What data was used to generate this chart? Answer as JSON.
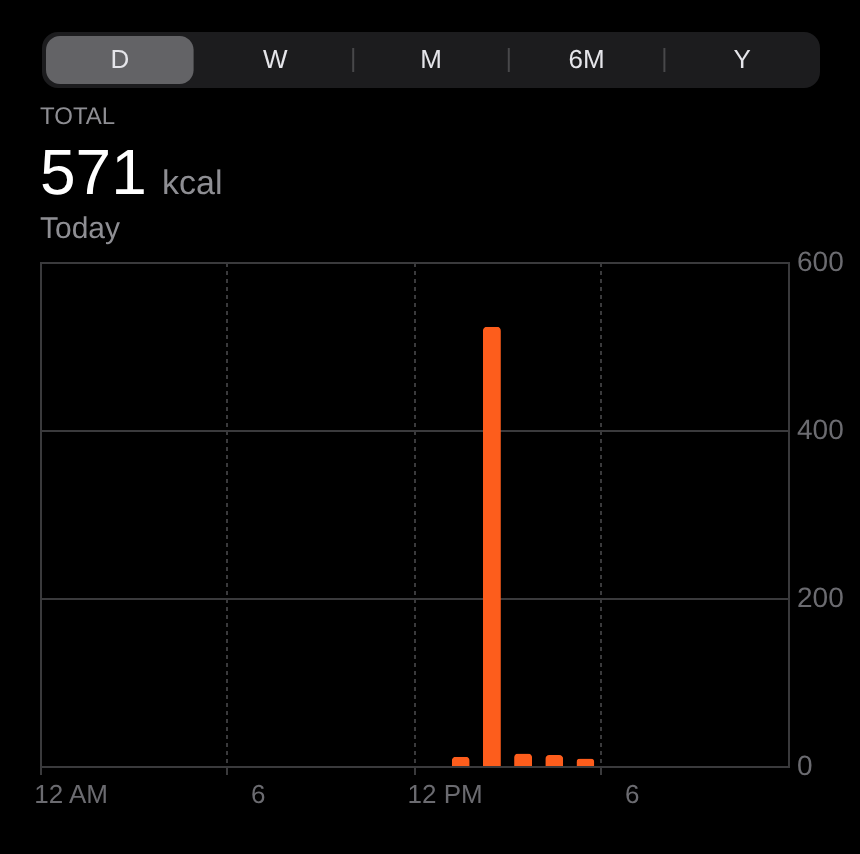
{
  "chart_data": {
    "type": "bar",
    "annotations": [
      "D",
      "W",
      "M",
      "6M",
      "Y",
      "TOTAL",
      "571",
      "kcal",
      "Today"
    ],
    "categories": [
      "12 AM",
      null,
      null,
      null,
      null,
      null,
      "6",
      null,
      null,
      null,
      null,
      null,
      "12 PM",
      null,
      null,
      null,
      null,
      null,
      "6",
      null,
      null,
      null,
      null,
      null
    ],
    "values": [
      null,
      null,
      null,
      null,
      null,
      null,
      null,
      null,
      null,
      null,
      null,
      null,
      null,
      11,
      523,
      15,
      13,
      9,
      null,
      null,
      null,
      null,
      null,
      null
    ],
    "color": "#fd5d1c",
    "ylim": [
      0,
      600
    ],
    "yticks": [
      0,
      200,
      400,
      600
    ],
    "grid": true
  }
}
